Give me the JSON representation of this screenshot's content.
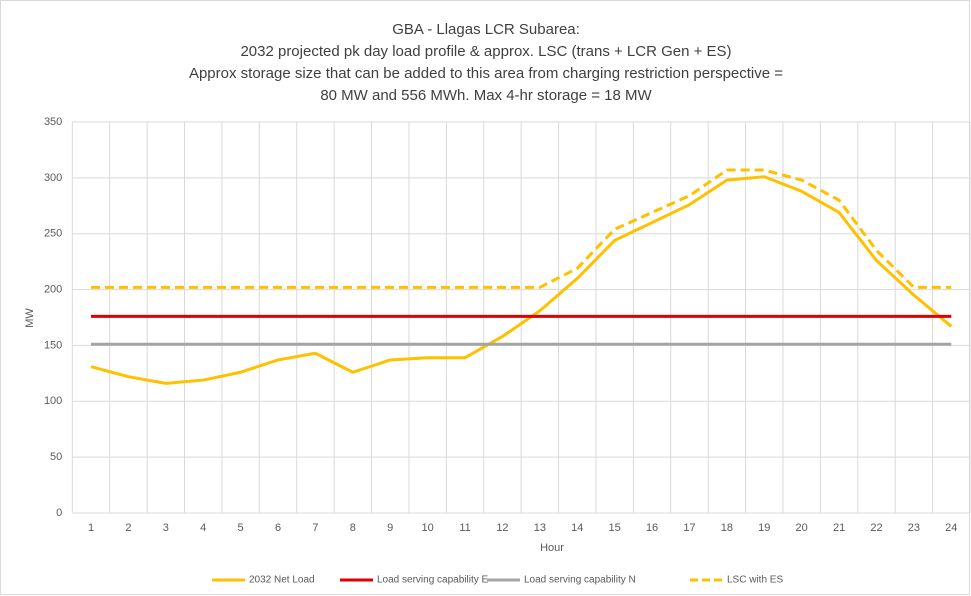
{
  "chart_data": {
    "type": "line",
    "title": [
      "GBA - Llagas LCR Subarea:",
      "2032 projected pk day load profile & approx. LSC (trans + LCR Gen + ES)",
      "Approx storage size that can be added to this area from charging restriction perspective =",
      "80 MW and 556 MWh. Max 4-hr storage = 18 MW"
    ],
    "x_label": "Hour",
    "y_label": "MW",
    "categories": [
      1,
      2,
      3,
      4,
      5,
      6,
      7,
      8,
      9,
      10,
      11,
      12,
      13,
      14,
      15,
      16,
      17,
      18,
      19,
      20,
      21,
      22,
      23,
      24
    ],
    "series": [
      {
        "name": "2032 Net Load",
        "color": "#ffc000",
        "dash": false,
        "values": [
          131,
          122,
          116,
          119,
          126,
          137,
          143,
          126,
          137,
          139,
          139,
          158,
          181,
          210,
          244,
          260,
          276,
          298,
          301,
          288,
          269,
          226,
          195,
          167
        ]
      },
      {
        "name": "Load serving capability E",
        "color": "#e00000",
        "dash": false,
        "values": [
          176,
          176,
          176,
          176,
          176,
          176,
          176,
          176,
          176,
          176,
          176,
          176,
          176,
          176,
          176,
          176,
          176,
          176,
          176,
          176,
          176,
          176,
          176,
          176
        ]
      },
      {
        "name": "Load serving capability N",
        "color": "#a5a5a5",
        "dash": false,
        "values": [
          151,
          151,
          151,
          151,
          151,
          151,
          151,
          151,
          151,
          151,
          151,
          151,
          151,
          151,
          151,
          151,
          151,
          151,
          151,
          151,
          151,
          151,
          151,
          151
        ]
      },
      {
        "name": "LSC with ES",
        "color": "#ffc000",
        "dash": true,
        "values": [
          202,
          202,
          202,
          202,
          202,
          202,
          202,
          202,
          202,
          202,
          202,
          202,
          202,
          219,
          254,
          269,
          284,
          307,
          307,
          298,
          280,
          235,
          202,
          202
        ]
      }
    ],
    "ylim": [
      0,
      350
    ],
    "yticks": [
      0,
      50,
      100,
      150,
      200,
      250,
      300,
      350
    ],
    "grid": true,
    "legend": "bottom"
  }
}
